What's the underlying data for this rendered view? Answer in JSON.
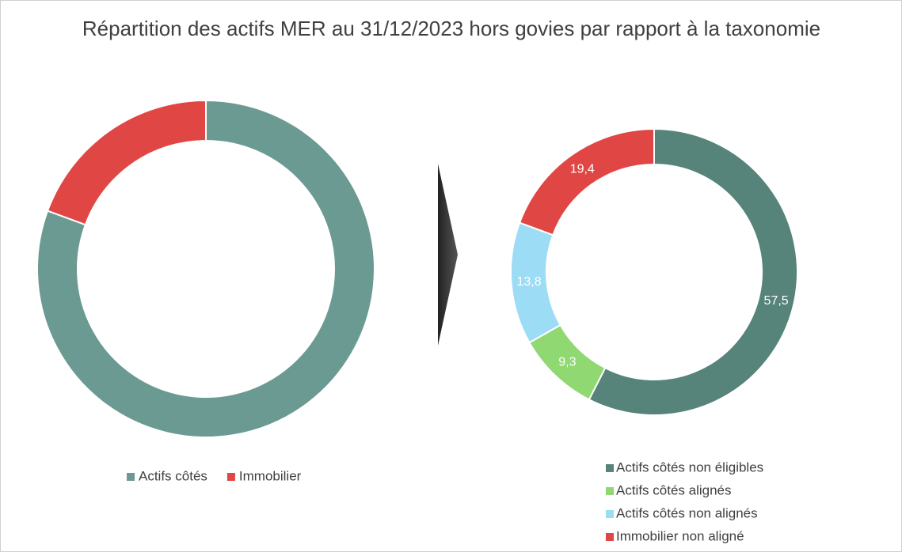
{
  "title": "Répartition des actifs MER au 31/12/2023 hors govies par rapport à la taxonomie",
  "chart_data": [
    {
      "type": "donut",
      "categories": [
        "Actifs côtés",
        "Immobilier"
      ],
      "values": [
        80.6,
        19.4
      ],
      "colors": [
        "#6a9a92",
        "#e04744"
      ]
    },
    {
      "type": "donut",
      "categories": [
        "Actifs côtés non éligibles",
        "Actifs côtés alignés",
        "Actifs côtés non alignés",
        "Immobilier non aligné"
      ],
      "values": [
        57.5,
        9.3,
        13.8,
        19.4
      ],
      "value_labels": [
        "57,5",
        "9,3",
        "13,8",
        "19,4"
      ],
      "colors": [
        "#56837a",
        "#8fd872",
        "#9ddcf5",
        "#e04744"
      ]
    }
  ]
}
